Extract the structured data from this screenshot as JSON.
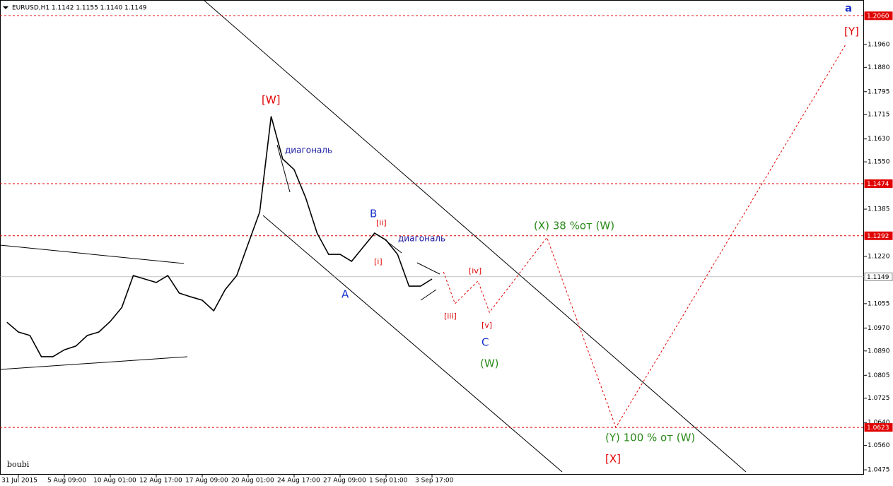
{
  "chart_data": {
    "type": "line",
    "title": "EURUSD,H1  1.1142 1.1155 1.1140 1.1149",
    "categories": [
      null,
      "31 Jul 2015",
      null,
      null,
      null,
      "5 Aug 09:00",
      null,
      null,
      null,
      "10 Aug 01:00",
      null,
      null,
      null,
      "12 Aug 17:00",
      null,
      null,
      null,
      "17 Aug 09:00",
      null,
      null,
      null,
      "20 Aug 01:00",
      null,
      null,
      null,
      "24 Aug 17:00",
      null,
      null,
      null,
      "27 Aug 09:00",
      null,
      null,
      null,
      "1 Sep 01:00",
      null,
      null,
      null,
      "3 Sep 17:00",
      null,
      null,
      null,
      null,
      null,
      null,
      null,
      null,
      null,
      null,
      null,
      null,
      null,
      null,
      null,
      null,
      null,
      null,
      null,
      null,
      null,
      null,
      null,
      null,
      null,
      null,
      null,
      null,
      null,
      null,
      null,
      null,
      null,
      null,
      null,
      null
    ],
    "series": [
      {
        "name": "EURUSD",
        "color": "#000000",
        "line_style": "solid",
        "values": [
          1.099,
          1.0956,
          1.0944,
          1.087,
          1.087,
          1.0894,
          1.0907,
          1.0944,
          1.0956,
          1.0993,
          1.1042,
          1.1153,
          1.1141,
          1.1129,
          1.1153,
          1.1092,
          1.1079,
          1.1067,
          1.103,
          1.1104,
          1.1153,
          1.1264,
          1.1375,
          1.1709,
          1.156,
          1.1523,
          1.1425,
          1.1301,
          1.1227,
          1.1227,
          1.1203,
          1.1252,
          1.1301,
          1.1277,
          1.1227,
          1.1116,
          1.1116,
          1.1141,
          null,
          null,
          null,
          null,
          null,
          null,
          null,
          null,
          null,
          null,
          null,
          null,
          null,
          null,
          null,
          null,
          null,
          null,
          null,
          null,
          null,
          null,
          null,
          null,
          null,
          null,
          null,
          null,
          null,
          null,
          null,
          null,
          null,
          null,
          null,
          null
        ]
      },
      {
        "name": "forecast",
        "color": "#e00000",
        "line_style": "dashed",
        "values": [
          null,
          null,
          null,
          null,
          null,
          null,
          null,
          null,
          null,
          null,
          null,
          null,
          null,
          null,
          null,
          null,
          null,
          null,
          null,
          null,
          null,
          null,
          null,
          null,
          null,
          null,
          null,
          null,
          null,
          null,
          null,
          null,
          null,
          null,
          null,
          null,
          null,
          null,
          1.1166,
          1.1055,
          1.1095,
          1.1134,
          1.1025,
          1.1077,
          1.1129,
          1.1182,
          1.1234,
          1.1286,
          1.1176,
          1.1065,
          1.0955,
          1.0844,
          1.0734,
          1.0623,
          1.069,
          1.0757,
          1.0824,
          1.089,
          1.0957,
          1.1024,
          1.1091,
          1.1158,
          1.1225,
          1.1292,
          1.1358,
          1.1425,
          1.1492,
          1.1559,
          1.1626,
          1.1693,
          1.1759,
          1.1826,
          1.1893,
          1.196
        ]
      }
    ],
    "ylim": [
      1.0458,
      1.2115
    ],
    "yticks": [
      {
        "value": 1.0475,
        "label": "1.0475"
      },
      {
        "value": 1.056,
        "label": "1.0560"
      },
      {
        "value": 1.064,
        "label": "1.0640"
      },
      {
        "value": 1.0725,
        "label": "1.0725"
      },
      {
        "value": 1.0805,
        "label": "1.0805"
      },
      {
        "value": 1.089,
        "label": "1.0890"
      },
      {
        "value": 1.097,
        "label": "1.0970"
      },
      {
        "value": 1.1055,
        "label": "1.1055"
      },
      {
        "value": 1.122,
        "label": "1.1220"
      },
      {
        "value": 1.1385,
        "label": "1.1385"
      },
      {
        "value": 1.155,
        "label": "1.1550"
      },
      {
        "value": 1.163,
        "label": "1.1630"
      },
      {
        "value": 1.1715,
        "label": "1.1715"
      },
      {
        "value": 1.1795,
        "label": "1.1795"
      },
      {
        "value": 1.188,
        "label": "1.1880"
      },
      {
        "value": 1.196,
        "label": "1.1960"
      }
    ],
    "levels": [
      {
        "value": 1.206,
        "label": "1.2060",
        "color": "#e00000"
      },
      {
        "value": 1.1474,
        "label": "1.1474",
        "color": "#e00000"
      },
      {
        "value": 1.1292,
        "label": "1.1292",
        "color": "#e00000"
      },
      {
        "value": 1.0623,
        "label": "1.0623",
        "color": "#e00000"
      }
    ],
    "current_price": {
      "value": 1.1149,
      "label": "1.1149",
      "color": "#a0a0a0"
    },
    "annotations": [
      "[W]",
      "диагональ",
      "B",
      "[ii]",
      "диагональ",
      "[i]",
      "A",
      "[iv]",
      "[iii]",
      "[v]",
      "C",
      "(W)",
      "(X)  38 %от  (W)",
      "(Y)  100 % от (W)",
      "[X]",
      "[Y]",
      "a",
      "boubi"
    ]
  }
}
